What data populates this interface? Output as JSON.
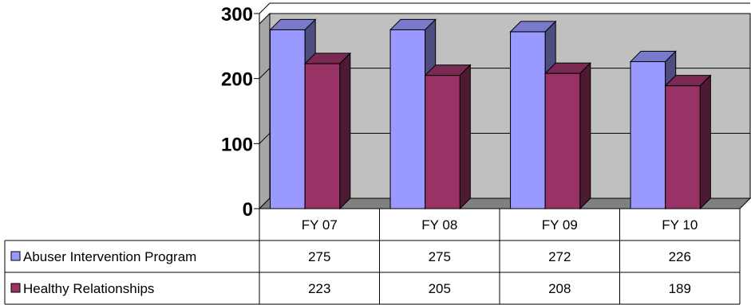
{
  "chart_data": {
    "type": "bar",
    "style": "3d-clustered-column-with-data-table",
    "categories": [
      "FY 07",
      "FY 08",
      "FY 09",
      "FY 10"
    ],
    "series": [
      {
        "name": "Abuser Intervention Program",
        "values": [
          275,
          275,
          272,
          226
        ],
        "color": "#9999FF",
        "side_color": "#4D4D80",
        "top_color": "#7A7ACC"
      },
      {
        "name": "Healthy Relationships",
        "values": [
          223,
          205,
          208,
          189
        ],
        "color": "#993366",
        "side_color": "#4D1A33",
        "top_color": "#7A2952"
      }
    ],
    "yticks": [
      "0",
      "100",
      "200",
      "300"
    ],
    "ylim": [
      0,
      300
    ],
    "grid": true,
    "legend": "data-table-left",
    "wall_color": "#C0C0C0",
    "floor_color": "#808080"
  }
}
